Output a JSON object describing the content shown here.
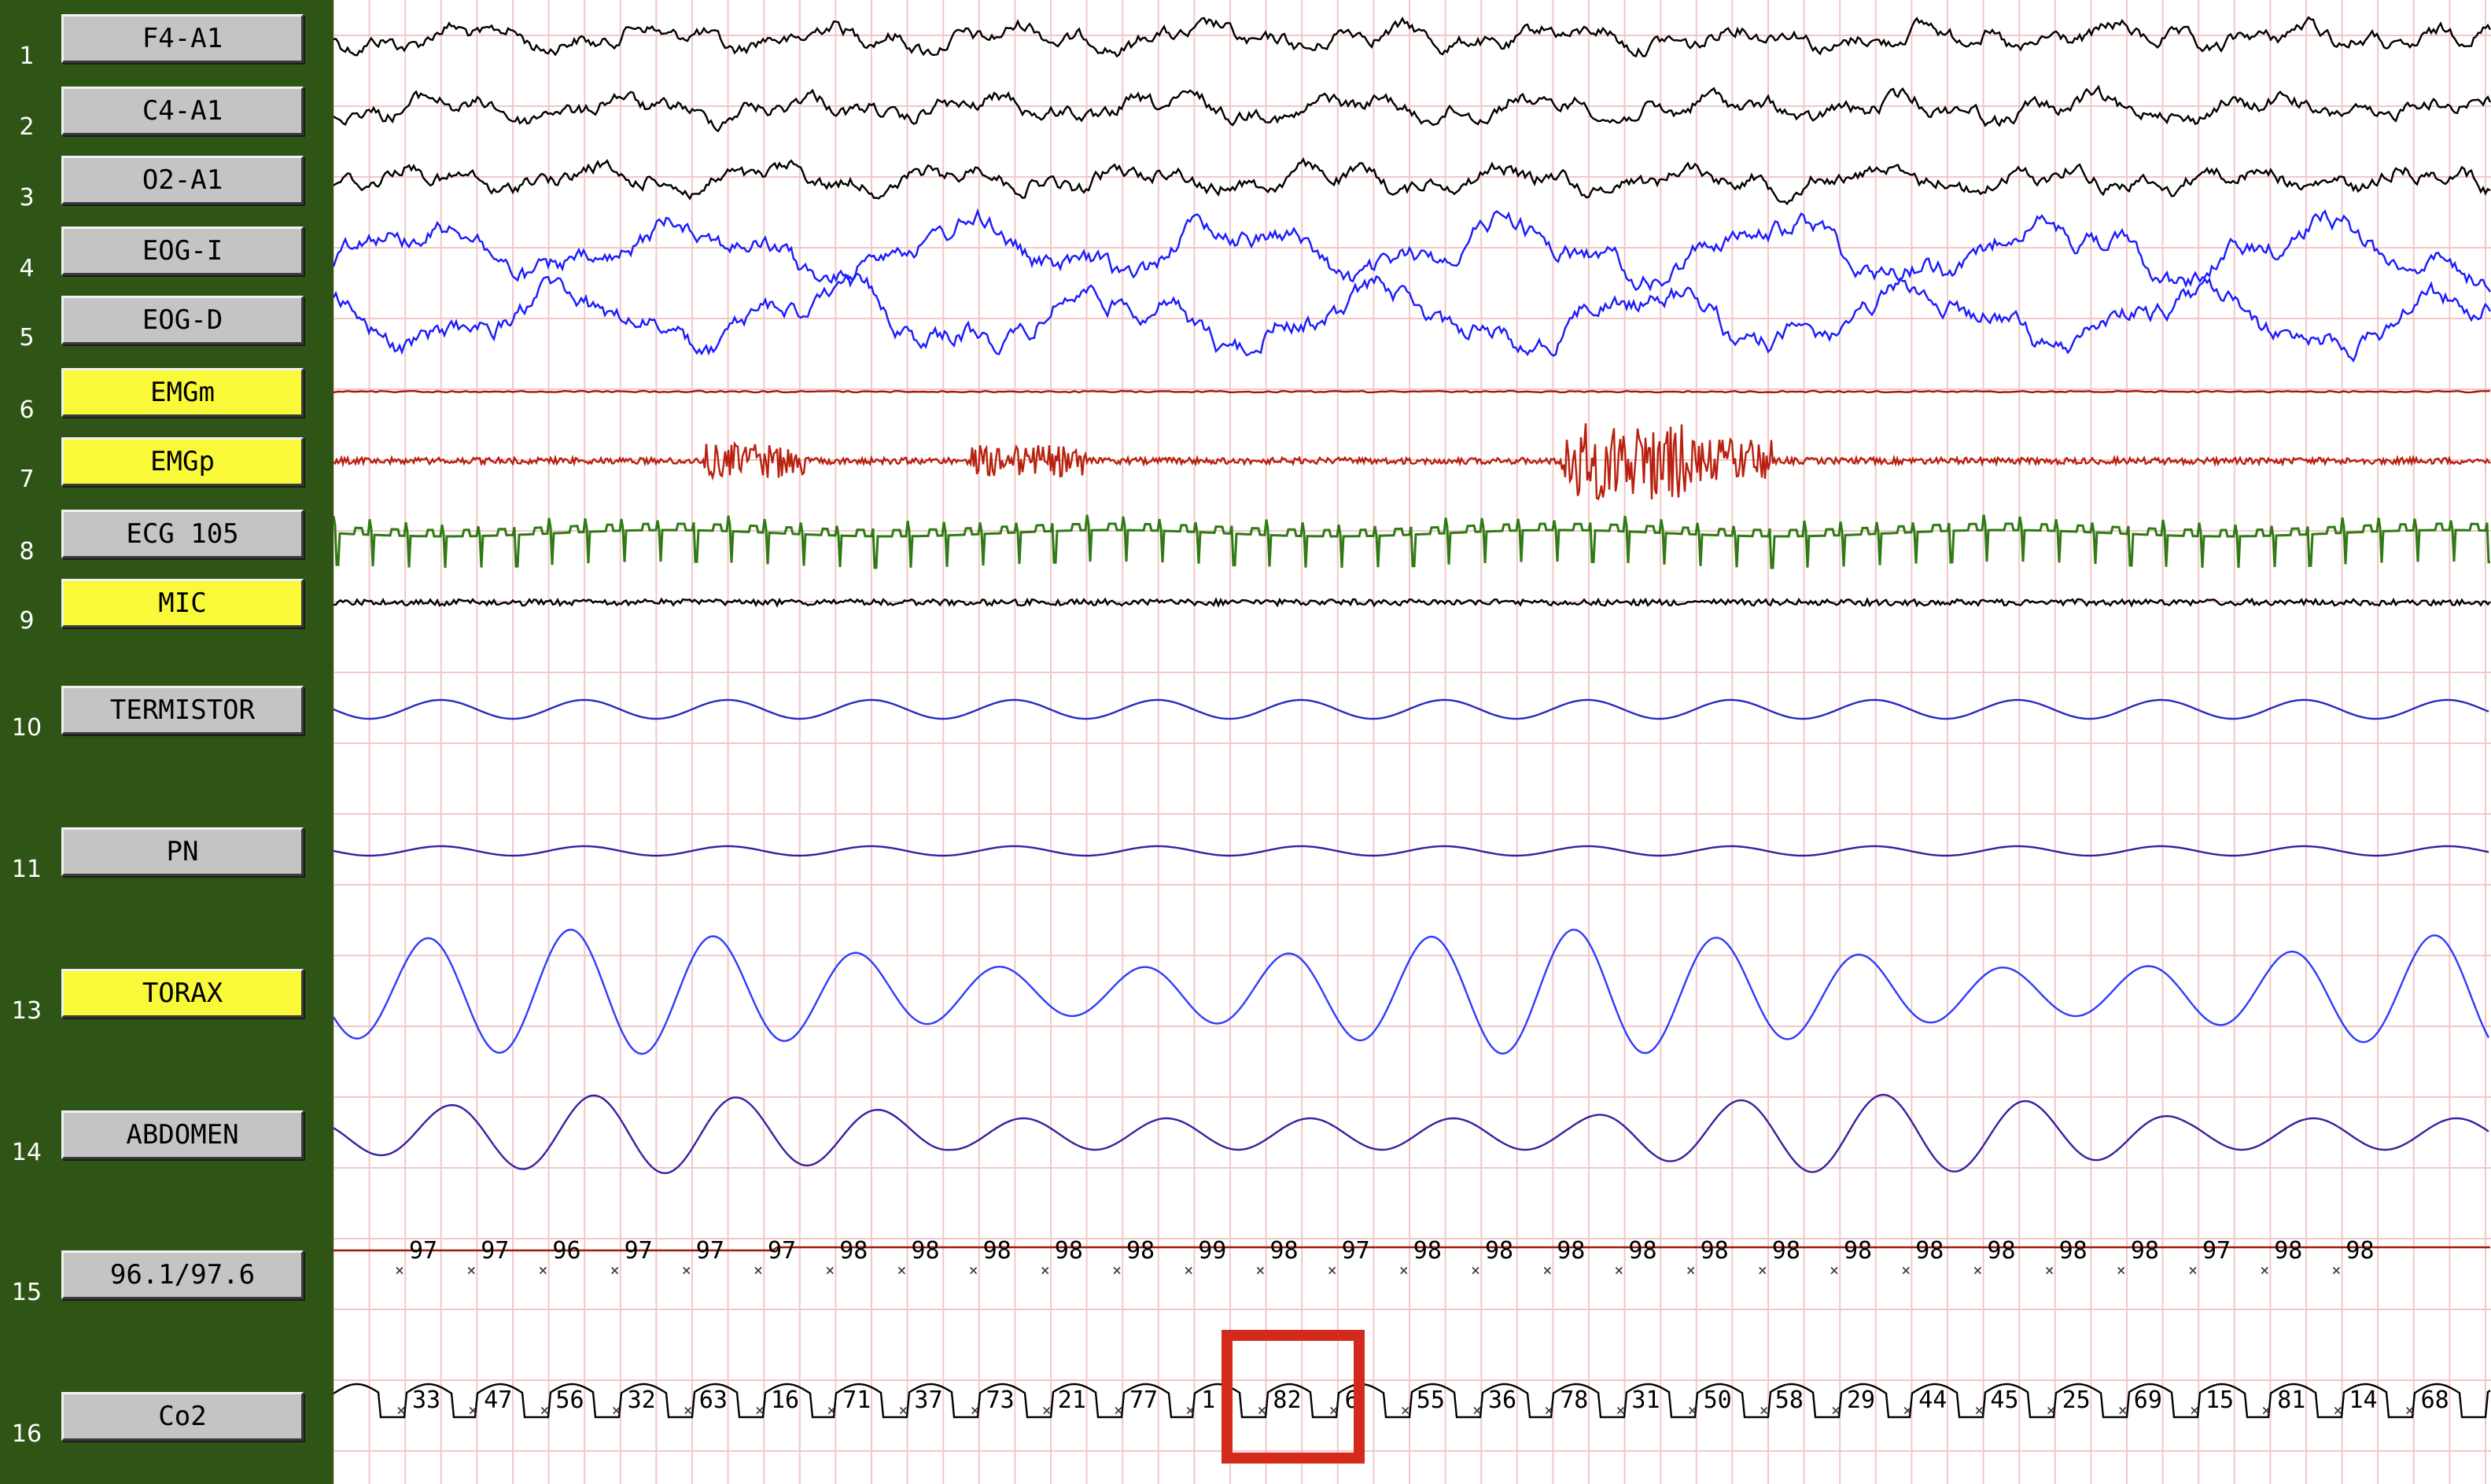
{
  "channels": [
    {
      "num": "1",
      "label": "F4-A1",
      "style": "gray",
      "trace_color": "#000000",
      "kind": "eeg"
    },
    {
      "num": "2",
      "label": "C4-A1",
      "style": "gray",
      "trace_color": "#000000",
      "kind": "eeg"
    },
    {
      "num": "3",
      "label": "O2-A1",
      "style": "gray",
      "trace_color": "#000000",
      "kind": "eeg"
    },
    {
      "num": "4",
      "label": "EOG-I",
      "style": "gray",
      "trace_color": "#1a1aff",
      "kind": "eog"
    },
    {
      "num": "5",
      "label": "EOG-D",
      "style": "gray",
      "trace_color": "#1a1aff",
      "kind": "eog"
    },
    {
      "num": "6",
      "label": "EMGm",
      "style": "yellow",
      "trace_color": "#a11a0e",
      "kind": "flat"
    },
    {
      "num": "7",
      "label": "EMGp",
      "style": "yellow",
      "trace_color": "#b8200f",
      "kind": "emg"
    },
    {
      "num": "8",
      "label": "ECG 105",
      "style": "gray",
      "trace_color": "#2f7a13",
      "kind": "ecg"
    },
    {
      "num": "9",
      "label": "MIC",
      "style": "yellow",
      "trace_color": "#000000",
      "kind": "mic"
    },
    {
      "num": "10",
      "label": "TERMISTOR",
      "style": "gray",
      "trace_color": "#2a2abf",
      "kind": "resp_small"
    },
    {
      "num": "11",
      "label": "PN",
      "style": "gray",
      "trace_color": "#3a1fa0",
      "kind": "resp_flat"
    },
    {
      "num": "13",
      "label": "TORAX",
      "style": "yellow",
      "trace_color": "#2f3bff",
      "kind": "resp_large"
    },
    {
      "num": "14",
      "label": "ABDOMEN",
      "style": "gray",
      "trace_color": "#3a1fa0",
      "kind": "resp_mid"
    },
    {
      "num": "15",
      "label": "96.1/97.6",
      "style": "gray",
      "trace_color": "#a11a0e",
      "kind": "spo2"
    },
    {
      "num": "16",
      "label": "Co2",
      "style": "gray",
      "trace_color": "#000000",
      "kind": "co2"
    }
  ],
  "spo2_values": [
    "97",
    "97",
    "96",
    "97",
    "97",
    "97",
    "98",
    "98",
    "98",
    "98",
    "98",
    "99",
    "98",
    "97",
    "98",
    "98",
    "98",
    "98",
    "98",
    "98",
    "98",
    "98",
    "98",
    "98",
    "98",
    "97",
    "98",
    "98"
  ],
  "co2_values": [
    "33",
    "47",
    "56",
    "32",
    "63",
    "16",
    "71",
    "37",
    "73",
    "21",
    "77",
    "1",
    "82",
    "6",
    "55",
    "36",
    "78",
    "31",
    "50",
    "58",
    "29",
    "44",
    "45",
    "25",
    "69",
    "15",
    "81",
    "14",
    "68"
  ],
  "highlight": {
    "label": "selected-epoch-marker",
    "color": "#d42a1c"
  },
  "colors": {
    "sidebar": "#2e5516",
    "grid": "#f1c8c8",
    "grid_major": "#e8b4b4"
  }
}
